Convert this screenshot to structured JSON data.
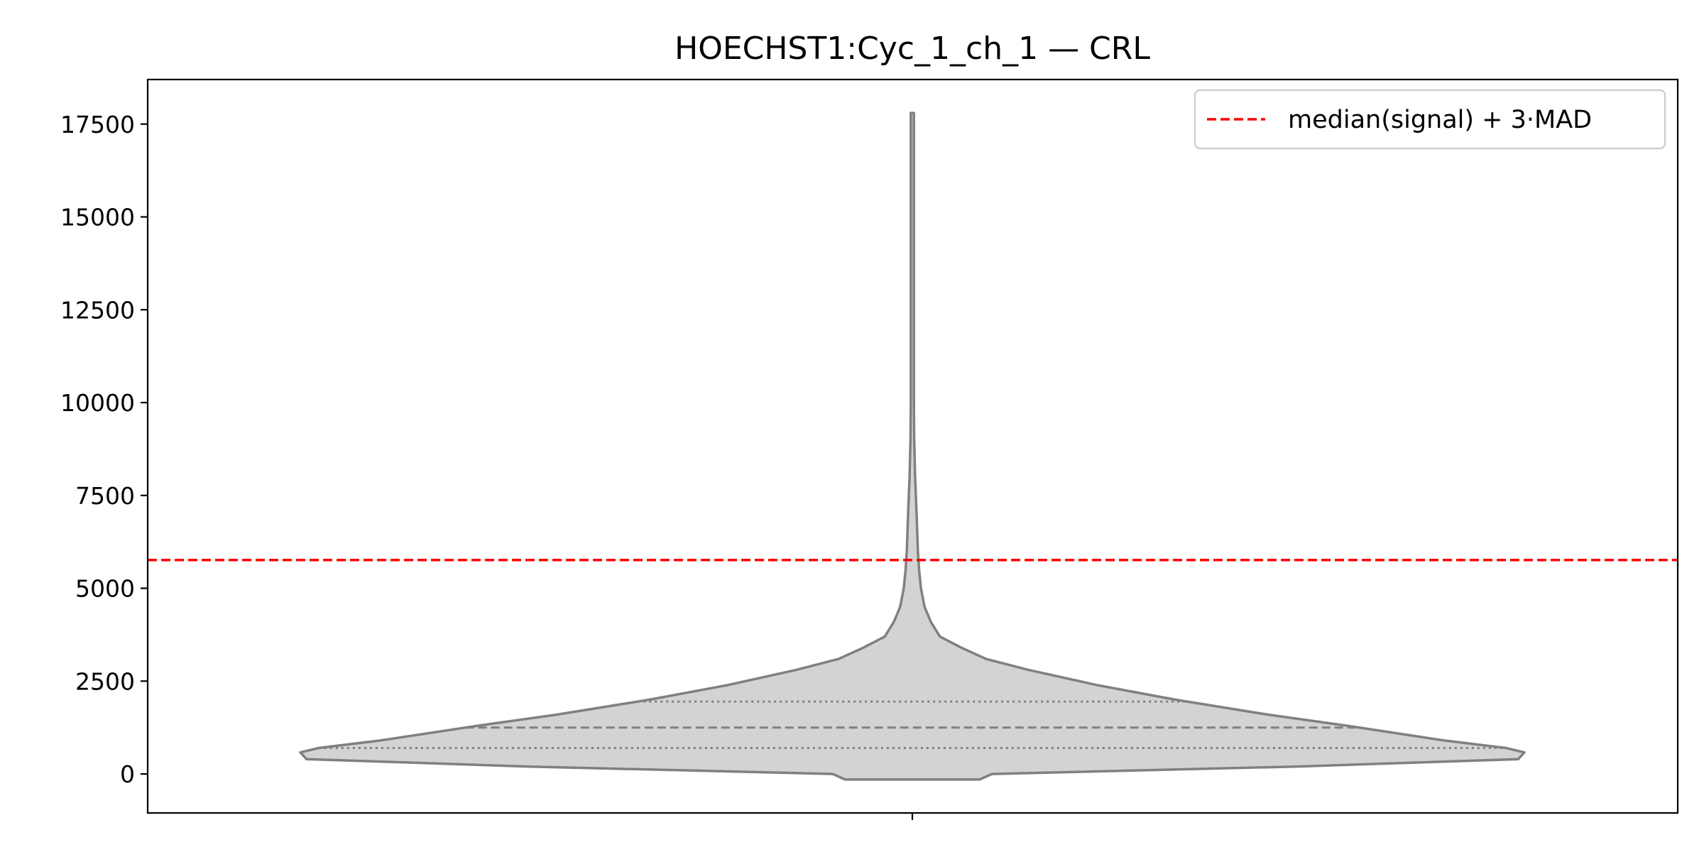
{
  "chart_data": {
    "type": "violin",
    "title": "HOECHST1:Cyc_1_ch_1 — CRL",
    "xlabel": "",
    "ylabel": "",
    "categories": [
      ""
    ],
    "ylim": [
      -1050,
      18700
    ],
    "yticks": [
      0,
      2500,
      5000,
      7500,
      10000,
      12500,
      15000,
      17500
    ],
    "grid": false,
    "legend": {
      "placement": "top-right",
      "entries": [
        {
          "label": "median(signal) + 3·MAD",
          "style": "dashed",
          "color": "#ff0000"
        }
      ]
    },
    "threshold": {
      "value": 5760,
      "label": "median(signal) + 3·MAD",
      "color": "#ff0000"
    },
    "violin": {
      "fill": "#d3d3d3",
      "edge": "#808080",
      "range": [
        -150,
        17800
      ],
      "density_profile": [
        [
          -150,
          0.11
        ],
        [
          0,
          0.13
        ],
        [
          200,
          0.63
        ],
        [
          400,
          0.99
        ],
        [
          580,
          1.0
        ],
        [
          700,
          0.97
        ],
        [
          900,
          0.87
        ],
        [
          1300,
          0.71
        ],
        [
          1600,
          0.58
        ],
        [
          2000,
          0.43
        ],
        [
          2400,
          0.3
        ],
        [
          2800,
          0.19
        ],
        [
          3100,
          0.12
        ],
        [
          3400,
          0.08
        ],
        [
          3700,
          0.045
        ],
        [
          4100,
          0.03
        ],
        [
          4500,
          0.02
        ],
        [
          5000,
          0.014
        ],
        [
          5500,
          0.011
        ],
        [
          6000,
          0.009
        ],
        [
          6500,
          0.008
        ],
        [
          7000,
          0.007
        ],
        [
          8000,
          0.0045
        ],
        [
          9000,
          0.003
        ],
        [
          10000,
          0.0025
        ],
        [
          12000,
          0.0025
        ],
        [
          14000,
          0.0025
        ],
        [
          16000,
          0.0025
        ],
        [
          17800,
          0.0025
        ]
      ],
      "quartiles": {
        "q1": 700,
        "median": 1250,
        "q3": 1950
      }
    }
  }
}
